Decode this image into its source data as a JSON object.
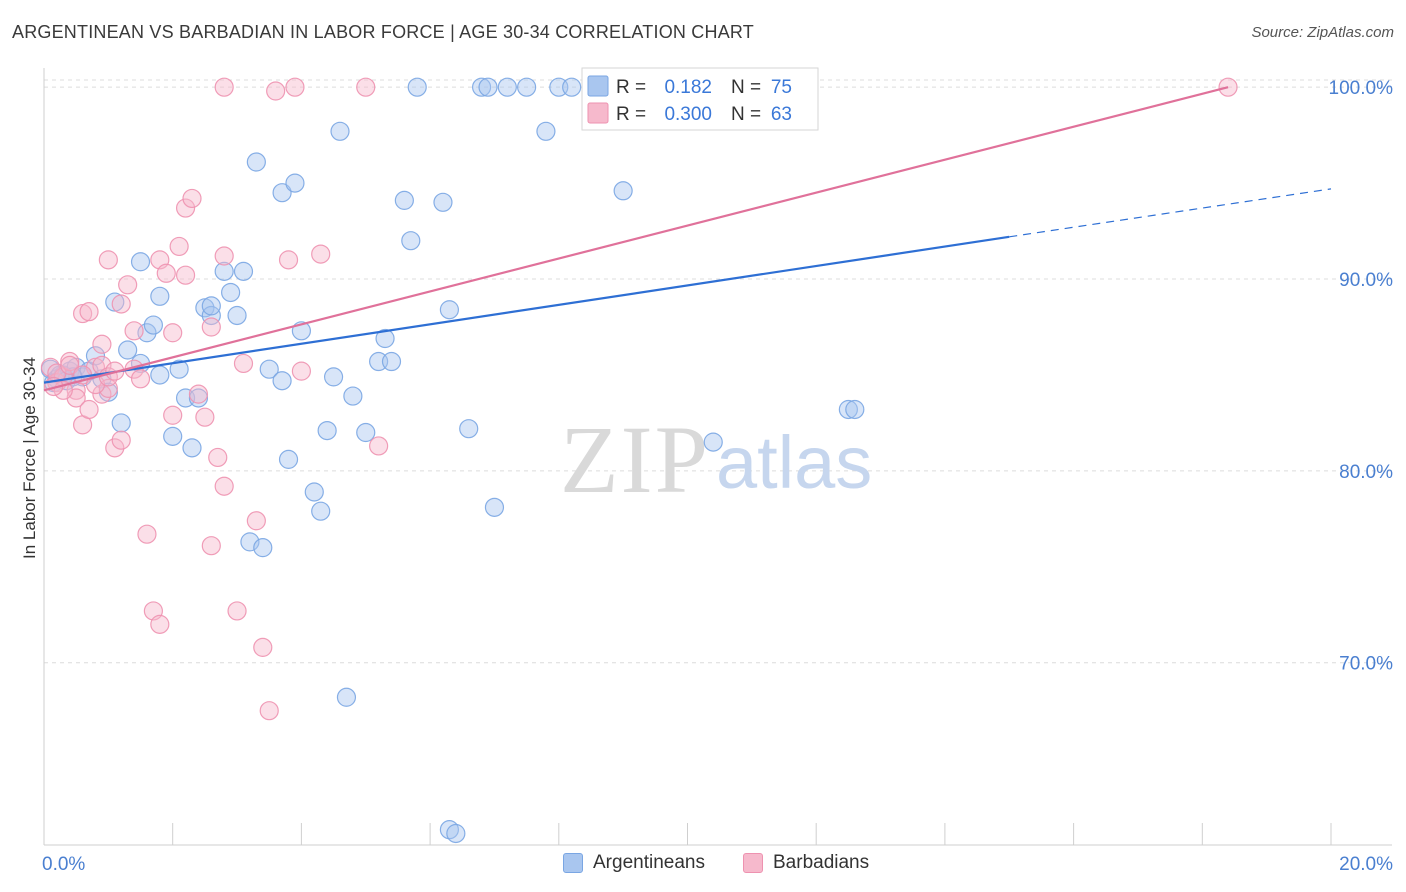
{
  "title": "ARGENTINEAN VS BARBADIAN IN LABOR FORCE | AGE 30-34 CORRELATION CHART",
  "source": "Source: ZipAtlas.com",
  "watermark": {
    "zip": "ZIP",
    "atlas": "atlas"
  },
  "colors": {
    "blue_fill": "#a9c6ef",
    "blue_stroke": "#7aa6e3",
    "blue_line": "#2e6fd4",
    "pink_fill": "#f6b9cc",
    "pink_stroke": "#ee92b0",
    "pink_line": "#e0719a",
    "axis_text": "#4a7fd0",
    "grid": "#dcdcdc"
  },
  "chart_data": {
    "type": "scatter",
    "xlabel": "",
    "ylabel": "In Labor Force | Age 30-34",
    "xlim": [
      0,
      20
    ],
    "ylim": [
      60.5,
      101
    ],
    "x_tick_labels": [
      {
        "value": 0,
        "label": "0.0%"
      },
      {
        "value": 20,
        "label": "20.0%"
      }
    ],
    "y_tick_labels": [
      {
        "value": 100,
        "label": "100.0%"
      },
      {
        "value": 90,
        "label": "90.0%"
      },
      {
        "value": 80,
        "label": "80.0%"
      },
      {
        "value": 70,
        "label": "70.0%"
      }
    ],
    "stats_legend": [
      {
        "series": "Argentineans",
        "r_label": "R =",
        "r_value": "0.182",
        "n_label": "N =",
        "n_value": "75"
      },
      {
        "series": "Barbadians",
        "r_label": "R =",
        "r_value": "0.300",
        "n_label": "N =",
        "n_value": "63"
      }
    ],
    "series": [
      {
        "name": "Argentineans",
        "color": "blue",
        "trend": {
          "x0": 0,
          "y0": 84.6,
          "x1": 15,
          "y1": 92.2,
          "dash_to_x": 20,
          "dash_to_y": 94.7
        },
        "points": [
          [
            0.1,
            85.3
          ],
          [
            0.2,
            84.8
          ],
          [
            0.3,
            85.0
          ],
          [
            0.4,
            85.2
          ],
          [
            0.5,
            85.4
          ],
          [
            0.6,
            84.9
          ],
          [
            0.7,
            85.2
          ],
          [
            0.8,
            86.0
          ],
          [
            0.9,
            84.8
          ],
          [
            1.0,
            84.1
          ],
          [
            1.1,
            88.8
          ],
          [
            1.2,
            82.5
          ],
          [
            1.3,
            86.3
          ],
          [
            1.5,
            85.6
          ],
          [
            1.5,
            90.9
          ],
          [
            1.6,
            87.2
          ],
          [
            1.7,
            87.6
          ],
          [
            1.8,
            89.1
          ],
          [
            1.8,
            85.0
          ],
          [
            2.0,
            81.8
          ],
          [
            2.1,
            85.3
          ],
          [
            2.2,
            83.8
          ],
          [
            2.3,
            81.2
          ],
          [
            2.4,
            83.8
          ],
          [
            2.5,
            88.5
          ],
          [
            2.6,
            88.1
          ],
          [
            2.6,
            88.6
          ],
          [
            2.8,
            90.4
          ],
          [
            2.9,
            89.3
          ],
          [
            3.0,
            88.1
          ],
          [
            3.1,
            90.4
          ],
          [
            3.2,
            76.3
          ],
          [
            3.3,
            96.1
          ],
          [
            3.4,
            76.0
          ],
          [
            3.5,
            85.3
          ],
          [
            3.7,
            84.7
          ],
          [
            3.7,
            94.5
          ],
          [
            3.8,
            80.6
          ],
          [
            3.9,
            95.0
          ],
          [
            4.0,
            87.3
          ],
          [
            4.2,
            78.9
          ],
          [
            4.3,
            77.9
          ],
          [
            4.4,
            82.1
          ],
          [
            4.5,
            84.9
          ],
          [
            4.6,
            97.7
          ],
          [
            4.7,
            68.2
          ],
          [
            4.8,
            83.9
          ],
          [
            5.0,
            82.0
          ],
          [
            5.2,
            85.7
          ],
          [
            5.3,
            86.9
          ],
          [
            5.4,
            85.7
          ],
          [
            5.6,
            94.1
          ],
          [
            5.7,
            92.0
          ],
          [
            5.8,
            100.0
          ],
          [
            6.2,
            94.0
          ],
          [
            6.3,
            88.4
          ],
          [
            6.3,
            61.3
          ],
          [
            6.4,
            61.1
          ],
          [
            6.6,
            82.2
          ],
          [
            6.8,
            100.0
          ],
          [
            6.9,
            100.0
          ],
          [
            7.0,
            78.1
          ],
          [
            7.2,
            100.0
          ],
          [
            7.5,
            100.0
          ],
          [
            7.8,
            97.7
          ],
          [
            8.0,
            100.0
          ],
          [
            8.2,
            100.0
          ],
          [
            9.0,
            94.6
          ],
          [
            10.4,
            81.5
          ],
          [
            12.5,
            83.2
          ],
          [
            12.6,
            83.2
          ],
          [
            0.15,
            84.6
          ],
          [
            0.25,
            85.0
          ],
          [
            0.35,
            84.7
          ],
          [
            0.45,
            84.9
          ]
        ]
      },
      {
        "name": "Barbadians",
        "color": "pink",
        "trend": {
          "x0": 0,
          "y0": 84.2,
          "x1": 18.4,
          "y1": 100.0
        },
        "points": [
          [
            0.1,
            85.4
          ],
          [
            0.2,
            84.6
          ],
          [
            0.3,
            84.9
          ],
          [
            0.4,
            85.7
          ],
          [
            0.5,
            84.2
          ],
          [
            0.5,
            83.8
          ],
          [
            0.6,
            82.4
          ],
          [
            0.6,
            88.2
          ],
          [
            0.7,
            88.3
          ],
          [
            0.8,
            85.4
          ],
          [
            0.9,
            86.6
          ],
          [
            0.9,
            84.0
          ],
          [
            1.0,
            84.3
          ],
          [
            1.0,
            91.0
          ],
          [
            1.1,
            81.2
          ],
          [
            1.2,
            81.6
          ],
          [
            1.2,
            88.7
          ],
          [
            1.3,
            89.7
          ],
          [
            1.4,
            87.3
          ],
          [
            1.4,
            85.3
          ],
          [
            1.5,
            84.8
          ],
          [
            1.6,
            76.7
          ],
          [
            1.7,
            72.7
          ],
          [
            1.8,
            72.0
          ],
          [
            1.8,
            91.0
          ],
          [
            1.9,
            90.3
          ],
          [
            2.0,
            87.2
          ],
          [
            2.0,
            82.9
          ],
          [
            2.1,
            91.7
          ],
          [
            2.2,
            90.2
          ],
          [
            2.2,
            93.7
          ],
          [
            2.3,
            94.2
          ],
          [
            2.4,
            84.0
          ],
          [
            2.5,
            82.8
          ],
          [
            2.6,
            76.1
          ],
          [
            2.6,
            87.5
          ],
          [
            2.7,
            80.7
          ],
          [
            2.8,
            91.2
          ],
          [
            2.8,
            79.2
          ],
          [
            3.0,
            72.7
          ],
          [
            3.1,
            85.6
          ],
          [
            3.3,
            77.4
          ],
          [
            3.4,
            70.8
          ],
          [
            3.5,
            67.5
          ],
          [
            3.6,
            99.8
          ],
          [
            3.8,
            91.0
          ],
          [
            3.9,
            100.0
          ],
          [
            4.0,
            85.2
          ],
          [
            4.3,
            91.3
          ],
          [
            5.0,
            100.0
          ],
          [
            5.2,
            81.3
          ],
          [
            2.8,
            100.0
          ],
          [
            0.2,
            85.1
          ],
          [
            0.3,
            84.2
          ],
          [
            0.4,
            85.5
          ],
          [
            0.6,
            85.0
          ],
          [
            0.7,
            83.2
          ],
          [
            0.8,
            84.5
          ],
          [
            0.9,
            85.5
          ],
          [
            1.0,
            84.9
          ],
          [
            1.1,
            85.2
          ],
          [
            0.15,
            84.4
          ],
          [
            18.4,
            100.0
          ]
        ]
      }
    ]
  }
}
